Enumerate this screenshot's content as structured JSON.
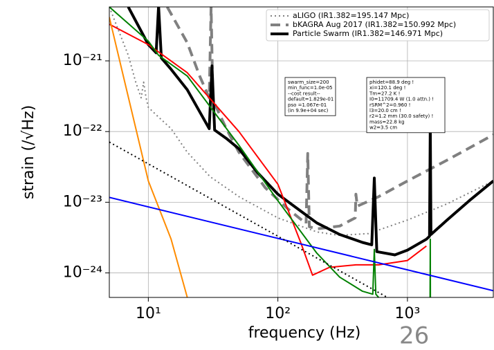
{
  "chart_data": {
    "type": "line",
    "xlabel": "frequency (Hz)",
    "ylabel": "strain (/√Hz)",
    "xscale": "log",
    "yscale": "log",
    "xlim": [
      5,
      4600
    ],
    "ylim": [
      4.5e-25,
      5.8e-21
    ],
    "xticks": [
      {
        "value": 10,
        "label": "10¹"
      },
      {
        "value": 100,
        "label": "10²"
      },
      {
        "value": 1000,
        "label": "10³"
      }
    ],
    "yticks": [
      {
        "value": 1e-24,
        "label": "10⁻²⁴"
      },
      {
        "value": 1e-23,
        "label": "10⁻²³"
      },
      {
        "value": 1e-22,
        "label": "10⁻²²"
      },
      {
        "value": 1e-21,
        "label": "10⁻²¹"
      }
    ],
    "grid": true,
    "legend": "upper right",
    "series": [
      {
        "name": "aLIGO (IR1.382=195.147 Mpc)",
        "color": "#808080",
        "style": "dotted",
        "width": 2,
        "x": [
          5,
          7,
          8,
          8.8,
          9.2,
          9.6,
          10,
          12,
          15,
          20,
          30,
          50,
          100,
          200,
          300,
          500,
          1000,
          2000,
          4600
        ],
        "values": [
          5.8e-21,
          1.2e-21,
          5e-22,
          3e-22,
          5e-22,
          3e-22,
          2.2e-22,
          1.6e-22,
          1.1e-22,
          5.1e-23,
          2.3e-23,
          1.2e-23,
          6e-24,
          3.8e-24,
          3.4e-24,
          3.6e-24,
          5.6e-24,
          9.4e-24,
          2e-23
        ]
      },
      {
        "name": "bKAGRA Aug 2017 (IR1.382=150.992 Mpc)",
        "color": "#808080",
        "style": "dashed",
        "width": 4,
        "x": [
          14,
          20,
          25,
          29.5,
          30.5,
          31.5,
          40,
          50,
          80,
          120,
          165,
          170,
          175,
          200,
          300,
          395,
          400,
          410,
          600,
          1000,
          2000,
          4600
        ],
        "values": [
          5.8e-21,
          1.8e-21,
          6e-22,
          3e-22,
          5.8e-21,
          2.8e-22,
          1.1e-22,
          5.1e-23,
          1.6e-23,
          8e-24,
          5e-24,
          4.9e-23,
          4.5e-24,
          4.2e-24,
          4.6e-24,
          6e-24,
          1.3e-23,
          8.8e-24,
          1.2e-23,
          2e-23,
          3.9e-23,
          9e-23
        ]
      },
      {
        "name": "Particle Swarm (IR1.382=146.971 Mpc)",
        "color": "#000000",
        "style": "solid",
        "width": 4,
        "x": [
          7,
          10,
          11.5,
          12,
          12.6,
          15,
          20,
          29.5,
          31,
          32.5,
          40,
          50,
          70,
          100,
          150,
          200,
          300,
          450,
          530,
          555,
          580,
          800,
          1000,
          1400,
          1480,
          1500,
          1520,
          2000,
          3000,
          4600
        ],
        "values": [
          5.8e-21,
          1.7e-21,
          1.3e-21,
          6e-21,
          1.1e-21,
          7.6e-22,
          3.9e-22,
          1.1e-22,
          8.5e-22,
          1.05e-22,
          8e-23,
          5.7e-23,
          2.6e-23,
          1.3e-23,
          7.5e-24,
          5.1e-24,
          3.5e-24,
          2.7e-24,
          2.5e-24,
          2.2e-23,
          2e-24,
          1.8e-24,
          2.1e-24,
          3e-24,
          3.3e-24,
          1.4e-22,
          3.5e-24,
          5.5e-24,
          1.05e-23,
          2e-23
        ]
      },
      {
        "color": "#ff0000",
        "style": "solid",
        "width": 2,
        "x": [
          5,
          10,
          20,
          50,
          100,
          150,
          185,
          250,
          400,
          600,
          1000,
          1400
        ],
        "values": [
          3.3e-21,
          1.7e-21,
          6.8e-22,
          1e-22,
          1.8e-23,
          2.7e-24,
          9.3e-25,
          1.2e-24,
          1.3e-24,
          1.3e-24,
          1.5e-24,
          2.4e-24
        ]
      },
      {
        "color": "#008000",
        "style": "solid",
        "width": 2,
        "x": [
          5,
          10,
          12,
          20,
          50,
          100,
          200,
          300,
          450,
          540,
          555,
          570,
          600,
          1450,
          1495,
          1500,
          1505
        ],
        "values": [
          5.8e-21,
          1.9e-21,
          1.2e-21,
          6.1e-22,
          6.4e-23,
          1.05e-23,
          1.9e-24,
          8.7e-25,
          5.5e-25,
          5e-25,
          2.15e-24,
          5e-25,
          4.5e-25,
          null,
          4.5e-25,
          3e-24,
          4.5e-25
        ]
      },
      {
        "color": "#ff8c00",
        "style": "solid",
        "width": 2,
        "x": [
          5,
          7,
          10,
          15,
          20
        ],
        "values": [
          4.15e-21,
          3.1e-22,
          2e-23,
          3e-24,
          4.5e-25
        ]
      },
      {
        "color": "#0000ff",
        "style": "solid",
        "width": 2,
        "x": [
          5,
          4600
        ],
        "values": [
          1.17e-23,
          5.6e-25
        ]
      },
      {
        "color": "#000000",
        "style": "dotted",
        "width": 2,
        "x": [
          5,
          700
        ],
        "values": [
          7.1e-23,
          4.5e-25
        ]
      }
    ],
    "annotations": [
      {
        "lines": [
          "swarm_size=200",
          "min_func=1.0e-05",
          "--cost result--",
          "default=1.829e-01",
          "pso     =1.067e-01",
          "(in 9.9e+04 sec)"
        ]
      },
      {
        "lines": [
          "phidet=88.9 deg !",
          "xi=120.1 deg !",
          "Tm=27.2 K !",
          "I0=11709.4 W (1.0 attn.) !",
          "rSRM^2=0.960 !",
          "l3=20.0 cm !",
          "r2=1.2 mm (30.0 safety) !",
          "mass=22.8 kg",
          "w2=3.5 cm"
        ]
      }
    ]
  },
  "page_number": "26"
}
